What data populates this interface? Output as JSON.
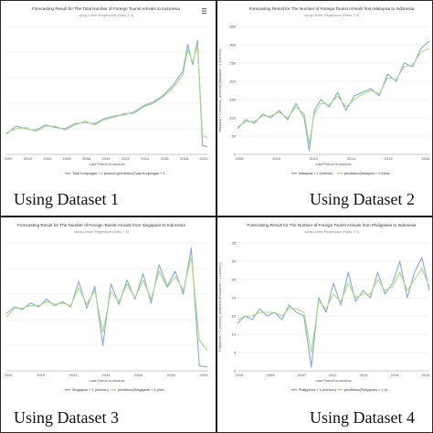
{
  "colors": {
    "actual": "#86a9d8",
    "predicted": "#a6e07a",
    "grid": "#e6e6e6",
    "axis": "#bdbdbd",
    "text": "#555555"
  },
  "captions": [
    "Using Dataset 1",
    "Using Dataset 2",
    "Using Dataset 3",
    "Using Dataset 4"
  ],
  "menu_icon": "hamburger-menu-icon",
  "chart_data": [
    {
      "type": "line",
      "title": "Forecasting Result for The Total Number of Foreign Tourist Arrivals to Indonesia",
      "subtitle": "using Linear Regression (Ratio 7:3)",
      "xlabel": "Last Period in window",
      "ylabel": "",
      "ylim": [
        0,
        10
      ],
      "yticks": [],
      "xticks": [
        "2000",
        "2002",
        "2004",
        "2006",
        "2008",
        "2010",
        "2012",
        "2014",
        "2016",
        "2018",
        "2020"
      ],
      "grid": true,
      "legend_position": "bottom",
      "x": [
        2000,
        2001,
        2002,
        2003,
        2004,
        2005,
        2006,
        2007,
        2008,
        2009,
        2010,
        2011,
        2012,
        2013,
        2014,
        2015,
        2016,
        2017,
        2018,
        2018.5,
        2019,
        2019.5,
        2020,
        2020.5
      ],
      "series": [
        {
          "name": "Total Kunjungan + 1 (horizon)",
          "values": [
            1.6,
            2.2,
            2.0,
            1.9,
            2.3,
            2.1,
            2.0,
            2.4,
            2.5,
            2.4,
            2.8,
            3.0,
            3.1,
            3.3,
            3.8,
            4.1,
            4.6,
            5.4,
            6.5,
            8.6,
            7.0,
            8.9,
            0.7,
            0.6
          ]
        },
        {
          "name": "prediction(Total Kunjungan + 1 ...",
          "values": [
            1.7,
            2.0,
            2.1,
            1.8,
            2.2,
            2.2,
            1.9,
            2.3,
            2.6,
            2.3,
            2.7,
            2.9,
            3.2,
            3.2,
            3.7,
            4.0,
            4.5,
            5.2,
            6.2,
            8.2,
            7.2,
            8.5,
            1.5,
            1.3
          ]
        }
      ]
    },
    {
      "type": "line",
      "title": "Forecasting Result for The Number of Foreign Tourist Arrivals from Malaysia to Indonesia",
      "subtitle": "using Linear Regression (Ratio 7:3)",
      "xlabel": "Last Period in window",
      "ylabel": "Malaysia + 1 (horizon), prediction(Malaysia + 1 (horizon))",
      "ylim": [
        0,
        350
      ],
      "yticks": [
        0,
        50,
        100,
        150,
        200,
        250,
        300,
        350
      ],
      "xticks": [
        "2008",
        "2010",
        "2012",
        "2014",
        "2016",
        "2018"
      ],
      "grid": true,
      "legend_position": "bottom",
      "x": [
        2008,
        2008.5,
        2009,
        2009.5,
        2010,
        2010.5,
        2011,
        2011.5,
        2012,
        2012.3,
        2012.6,
        2013,
        2013.5,
        2014,
        2014.5,
        2015,
        2015.5,
        2016,
        2016.5,
        2017,
        2017.5,
        2018,
        2018.5,
        2019,
        2019.5
      ],
      "series": [
        {
          "name": "Malaysia + 1 (horizon)",
          "values": [
            70,
            95,
            85,
            110,
            100,
            120,
            95,
            140,
            100,
            10,
            120,
            150,
            130,
            170,
            120,
            160,
            170,
            180,
            160,
            220,
            200,
            250,
            240,
            290,
            310
          ]
        },
        {
          "name": "prediction(Malaysia + 1 (horiz...",
          "values": [
            75,
            90,
            90,
            105,
            105,
            115,
            100,
            130,
            110,
            30,
            110,
            140,
            135,
            160,
            130,
            150,
            165,
            175,
            165,
            210,
            205,
            240,
            245,
            280,
            290
          ]
        }
      ]
    },
    {
      "type": "line",
      "title": "Forecasting Result for The Number of Foreign Tourist Arrivals from Singapore to Indonesia",
      "subtitle": "using Linear Regression (Ratio 7:3)",
      "xlabel": "Last Period in window",
      "ylabel": "",
      "ylim": [
        0,
        10
      ],
      "yticks": [],
      "xticks": [
        "2008",
        "2010",
        "2012",
        "2014",
        "2016",
        "2018",
        "2020"
      ],
      "grid": true,
      "legend_position": "bottom",
      "x": [
        2008,
        2008.5,
        2009,
        2009.5,
        2010,
        2010.5,
        2011,
        2011.5,
        2012,
        2012.5,
        2013,
        2013.5,
        2014,
        2014.5,
        2015,
        2015.5,
        2016,
        2016.5,
        2017,
        2017.5,
        2018,
        2018.5,
        2019,
        2019.5,
        2020,
        2020.5
      ],
      "series": [
        {
          "name": "Singapore + 1 (horizon)",
          "values": [
            4.5,
            5.0,
            4.8,
            5.3,
            5.0,
            5.6,
            5.1,
            5.4,
            5.0,
            7.0,
            4.9,
            6.6,
            2.0,
            6.8,
            5.2,
            7.1,
            5.6,
            7.6,
            5.3,
            8.3,
            6.6,
            7.8,
            6.0,
            9.6,
            0.4,
            0.3
          ]
        },
        {
          "name": "prediction(Singapore + 1 (hori...",
          "values": [
            4.2,
            4.9,
            4.9,
            5.1,
            5.1,
            5.4,
            5.2,
            5.3,
            5.1,
            6.5,
            5.2,
            6.3,
            3.0,
            6.2,
            5.4,
            6.8,
            5.7,
            7.1,
            5.6,
            7.8,
            6.5,
            7.4,
            6.3,
            8.9,
            2.4,
            1.6
          ]
        }
      ]
    },
    {
      "type": "line",
      "title": "Forecasting Result for The Number of Foreign Tourist Arrivals from Philippines to Indonesia",
      "subtitle": "using Linear Regression (Ratio 7:3)",
      "xlabel": "Last Period in window",
      "ylabel": "Philippines + 1 (horizon), prediction(Philippines + 1 (horizon))",
      "ylim": [
        0,
        35
      ],
      "yticks": [
        0,
        5,
        10,
        15,
        20,
        25,
        30,
        35
      ],
      "xticks": [
        "2006",
        "2008",
        "2010",
        "2012",
        "2014",
        "2016",
        "2018"
      ],
      "grid": true,
      "legend_position": "bottom",
      "x": [
        2006,
        2006.5,
        2007,
        2007.5,
        2008,
        2008.5,
        2009,
        2009.5,
        2010,
        2010.5,
        2011,
        2011.5,
        2012,
        2012.5,
        2013,
        2013.5,
        2014,
        2014.5,
        2015,
        2015.5,
        2016,
        2016.5,
        2017,
        2017.5,
        2018,
        2018.5,
        2019
      ],
      "series": [
        {
          "name": "Philippines + 1 (horizon)",
          "values": [
            13,
            15,
            14,
            17,
            15,
            16,
            14,
            18,
            16,
            15,
            1,
            20,
            16,
            24,
            18,
            27,
            19,
            22,
            20,
            27,
            21,
            24,
            30,
            20,
            27,
            31,
            22
          ]
        },
        {
          "name": "prediction(Philippines + 1 (h...",
          "values": [
            14,
            15,
            15,
            16,
            16,
            16,
            15,
            17,
            17,
            16,
            5,
            19,
            17,
            21,
            19,
            24,
            20,
            21,
            21,
            25,
            22,
            23,
            27,
            22,
            25,
            28,
            23
          ]
        }
      ]
    }
  ]
}
